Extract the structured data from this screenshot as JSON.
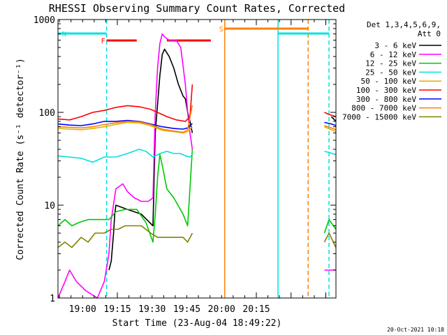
{
  "chart_data": {
    "type": "line",
    "title": "RHESSI Observing Summary Count Rates, Corrected",
    "xlabel": "Start Time (23-Aug-04 18:49:22)",
    "ylabel": "Corrected Count Rate (s⁻¹ detector⁻¹)",
    "yscale": "log",
    "ylim": [
      1,
      1000
    ],
    "xlim_minutes_after_start": [
      0,
      120
    ],
    "y_ticks": [
      {
        "v": 1,
        "label": "1"
      },
      {
        "v": 10,
        "label": "10"
      },
      {
        "v": 100,
        "label": "100"
      },
      {
        "v": 1000,
        "label": "1000"
      }
    ],
    "x_ticks": [
      {
        "t": 10.63,
        "label": "19:00"
      },
      {
        "t": 25.63,
        "label": "19:15"
      },
      {
        "t": 40.63,
        "label": "19:30"
      },
      {
        "t": 55.63,
        "label": "19:45"
      },
      {
        "t": 70.63,
        "label": "20:00"
      },
      {
        "t": 85.63,
        "label": "20:15"
      }
    ],
    "legend_header": [
      "Det 1,3,4,5,6,9,",
      "Att 0"
    ],
    "series": [
      {
        "name": "3 - 6 keV",
        "color": "#000000",
        "segments": [
          [
            [
              22,
              2
            ],
            [
              23,
              2.5
            ],
            [
              24,
              5
            ],
            [
              24.5,
              8
            ],
            [
              25,
              10
            ],
            [
              30,
              9
            ],
            [
              36,
              8
            ],
            [
              41,
              6
            ],
            [
              42,
              60
            ],
            [
              44,
              250
            ],
            [
              45,
              420
            ],
            [
              46,
              480
            ],
            [
              48,
              400
            ],
            [
              50,
              300
            ],
            [
              52,
              200
            ],
            [
              54,
              150
            ],
            [
              55,
              140
            ],
            [
              56,
              100
            ],
            [
              57,
              80
            ],
            [
              58,
              60
            ]
          ],
          [
            [
              118,
              90
            ],
            [
              120,
              80
            ]
          ]
        ]
      },
      {
        "name": "6 - 12 keV",
        "color": "#ff00ff",
        "segments": [
          [
            [
              0,
              1
            ],
            [
              3,
              1.5
            ],
            [
              5,
              2
            ],
            [
              8,
              1.5
            ],
            [
              12,
              1.2
            ],
            [
              17,
              1
            ],
            [
              20,
              1.5
            ],
            [
              22,
              3
            ],
            [
              23,
              7
            ],
            [
              25,
              15
            ],
            [
              28,
              17
            ],
            [
              30,
              14
            ],
            [
              33,
              12
            ],
            [
              36,
              11
            ],
            [
              39,
              11
            ],
            [
              41,
              12
            ],
            [
              42,
              100
            ],
            [
              43,
              300
            ],
            [
              44,
              550
            ],
            [
              45,
              700
            ],
            [
              46,
              650
            ],
            [
              48,
              600
            ],
            [
              51,
              600
            ],
            [
              53,
              500
            ],
            [
              55,
              200
            ],
            [
              56,
              100
            ],
            [
              57,
              60
            ],
            [
              58,
              40
            ]
          ],
          [
            [
              115,
              2
            ],
            [
              118,
              2
            ],
            [
              120,
              2
            ]
          ]
        ]
      },
      {
        "name": "12 - 25 keV",
        "color": "#00c800",
        "segments": [
          [
            [
              0,
              6
            ],
            [
              3,
              7
            ],
            [
              6,
              6
            ],
            [
              9,
              6.5
            ],
            [
              13,
              7
            ],
            [
              17,
              7
            ],
            [
              22,
              7
            ],
            [
              25,
              8.5
            ],
            [
              29,
              9
            ],
            [
              34,
              9
            ],
            [
              38,
              6.5
            ],
            [
              41,
              4
            ],
            [
              42,
              8
            ],
            [
              43,
              20
            ],
            [
              44,
              35
            ],
            [
              45,
              27
            ],
            [
              47,
              15
            ],
            [
              50,
              12
            ],
            [
              54,
              8
            ],
            [
              56,
              6
            ],
            [
              58,
              40
            ]
          ],
          [
            [
              115,
              5
            ],
            [
              117,
              7
            ],
            [
              120,
              5.5
            ]
          ]
        ]
      },
      {
        "name": "25 - 50 keV",
        "color": "#00e0e0",
        "segments": [
          [
            [
              0,
              34
            ],
            [
              5,
              33
            ],
            [
              10,
              32
            ],
            [
              15,
              29
            ],
            [
              20,
              33
            ],
            [
              25,
              33
            ],
            [
              30,
              36
            ],
            [
              35,
              40
            ],
            [
              38,
              38
            ],
            [
              41,
              33
            ],
            [
              44,
              36
            ],
            [
              47,
              38
            ],
            [
              50,
              36
            ],
            [
              53,
              36
            ],
            [
              55,
              34
            ],
            [
              57,
              33
            ],
            [
              58,
              35
            ]
          ],
          [
            [
              115,
              38
            ],
            [
              117,
              37
            ],
            [
              120,
              35
            ]
          ]
        ]
      },
      {
        "name": "50 - 100 keV",
        "color": "#e0b000",
        "segments": [
          [
            [
              0,
              67
            ],
            [
              5,
              66
            ],
            [
              10,
              65
            ],
            [
              15,
              67
            ],
            [
              20,
              70
            ],
            [
              25,
              74
            ],
            [
              30,
              78
            ],
            [
              35,
              77
            ],
            [
              40,
              72
            ],
            [
              45,
              64
            ],
            [
              50,
              62
            ],
            [
              54,
              60
            ],
            [
              56,
              62
            ],
            [
              58,
              70
            ]
          ],
          [
            [
              115,
              70
            ],
            [
              118,
              65
            ],
            [
              120,
              62
            ]
          ]
        ]
      },
      {
        "name": "100 - 300 keV",
        "color": "#ff0000",
        "segments": [
          [
            [
              0,
              85
            ],
            [
              5,
              83
            ],
            [
              10,
              90
            ],
            [
              15,
              100
            ],
            [
              20,
              105
            ],
            [
              25,
              113
            ],
            [
              30,
              118
            ],
            [
              35,
              115
            ],
            [
              40,
              108
            ],
            [
              43,
              100
            ],
            [
              47,
              90
            ],
            [
              51,
              83
            ],
            [
              55,
              80
            ],
            [
              57,
              90
            ],
            [
              58,
              200
            ]
          ],
          [
            [
              115,
              100
            ],
            [
              117,
              95
            ],
            [
              120,
              90
            ]
          ]
        ]
      },
      {
        "name": "300 - 800 keV",
        "color": "#0000ff",
        "segments": [
          [
            [
              0,
              75
            ],
            [
              5,
              73
            ],
            [
              10,
              72
            ],
            [
              15,
              75
            ],
            [
              20,
              80
            ],
            [
              25,
              80
            ],
            [
              30,
              82
            ],
            [
              35,
              80
            ],
            [
              40,
              75
            ],
            [
              45,
              70
            ],
            [
              50,
              67
            ],
            [
              54,
              66
            ],
            [
              56,
              68
            ],
            [
              58,
              76
            ]
          ],
          [
            [
              115,
              78
            ],
            [
              118,
              75
            ],
            [
              120,
              72
            ]
          ]
        ]
      },
      {
        "name": "800 - 7000 keV",
        "color": "#ff8000",
        "segments": [
          [
            [
              0,
              70
            ],
            [
              5,
              69
            ],
            [
              10,
              68
            ],
            [
              15,
              70
            ],
            [
              20,
              74
            ],
            [
              25,
              77
            ],
            [
              30,
              80
            ],
            [
              35,
              79
            ],
            [
              40,
              74
            ],
            [
              45,
              66
            ],
            [
              50,
              63
            ],
            [
              54,
              61
            ],
            [
              56,
              65
            ],
            [
              58,
              120
            ]
          ],
          [
            [
              115,
              72
            ],
            [
              118,
              68
            ],
            [
              120,
              65
            ]
          ]
        ]
      },
      {
        "name": "7000 - 15000 keV",
        "color": "#808000",
        "segments": [
          [
            [
              0,
              3.5
            ],
            [
              3,
              4
            ],
            [
              6,
              3.5
            ],
            [
              10,
              4.5
            ],
            [
              13,
              4
            ],
            [
              16,
              5
            ],
            [
              20,
              5
            ],
            [
              23,
              5.5
            ],
            [
              26,
              5.5
            ],
            [
              29,
              6
            ],
            [
              33,
              6
            ],
            [
              36,
              6
            ],
            [
              40,
              5
            ],
            [
              43,
              4.5
            ],
            [
              46,
              4.5
            ],
            [
              50,
              4.5
            ],
            [
              54,
              4.5
            ],
            [
              56,
              4
            ],
            [
              58,
              5
            ]
          ],
          [
            [
              115,
              4
            ],
            [
              117,
              5
            ],
            [
              120,
              3.5
            ]
          ]
        ]
      }
    ],
    "state_lines": [
      {
        "flag": "N",
        "color": "#00e0e0",
        "t_start": 0,
        "t_end": 21
      },
      {
        "flag": "N",
        "color": "#00e0e0",
        "t_start": 95,
        "t_end": 117
      },
      {
        "flag": "F",
        "color": "#ff0000",
        "t_start": 21,
        "t_end": 34
      },
      {
        "flag": "F",
        "color": "#ff0000",
        "t_start": 47,
        "t_end": 66
      },
      {
        "flag": "S",
        "color": "#ff8000",
        "t_start": 72,
        "t_end": 108
      }
    ],
    "vertical_markers": [
      {
        "t": 21,
        "color": "#00e0e0",
        "style": "dashed"
      },
      {
        "t": 72,
        "color": "#ff8000",
        "style": "solid"
      },
      {
        "t": 95,
        "color": "#00e0e0",
        "style": "solid"
      },
      {
        "t": 108,
        "color": "#ff8000",
        "style": "dashed"
      },
      {
        "t": 117,
        "color": "#00e0e0",
        "style": "dashed"
      }
    ]
  },
  "footer": {
    "timestamp": "20-Oct-2021 10:18"
  }
}
